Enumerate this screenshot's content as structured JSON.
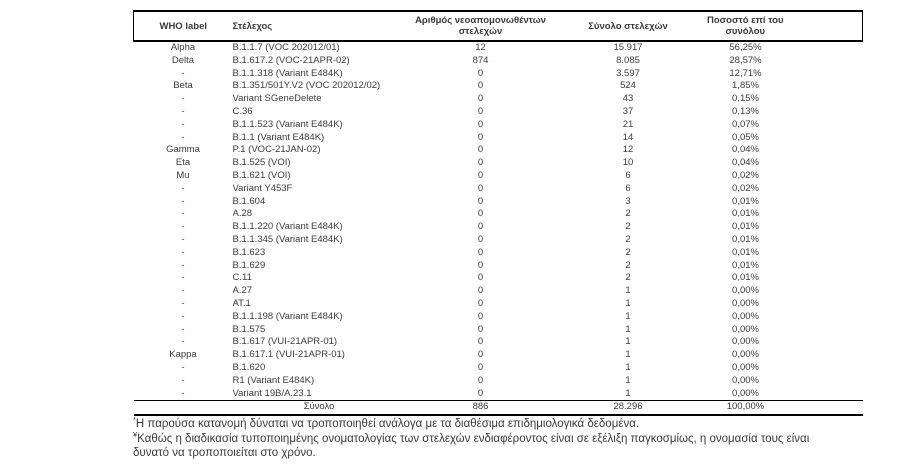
{
  "table": {
    "headers": [
      "WHO label",
      "Στέλεχος",
      "Αριθμός νεοαπομονωθέντων στελεχών",
      "Σύνολο στελεχών",
      "Ποσοστό επί του συνόλου"
    ],
    "rows": [
      [
        "Alpha",
        "B.1.1.7 (VOC 202012/01)",
        "12",
        "15.917",
        "56,25%"
      ],
      [
        "Delta",
        "B.1.617.2 (VOC-21APR-02)",
        "874",
        "8.085",
        "28,57%"
      ],
      [
        "-",
        "B.1.1.318 (Variant E484K)",
        "0",
        "3.597",
        "12,71%"
      ],
      [
        "Beta",
        "B.1.351/501Y.V2 (VOC 202012/02)",
        "0",
        "524",
        "1,85%"
      ],
      [
        "-",
        "Variant SGeneDelete",
        "0",
        "43",
        "0,15%"
      ],
      [
        "-",
        "C.36",
        "0",
        "37",
        "0,13%"
      ],
      [
        "-",
        "B.1.1.523 (Variant E484K)",
        "0",
        "21",
        "0,07%"
      ],
      [
        "-",
        "B.1.1 (Variant E484K)",
        "0",
        "14",
        "0,05%"
      ],
      [
        "Gamma",
        "P.1 (VOC-21JAN-02)",
        "0",
        "12",
        "0,04%"
      ],
      [
        "Eta",
        "B.1.525 (VOI)",
        "0",
        "10",
        "0,04%"
      ],
      [
        "Mu",
        "B.1.621 (VOI)",
        "0",
        "6",
        "0,02%"
      ],
      [
        "-",
        "Variant Y453F",
        "0",
        "6",
        "0,02%"
      ],
      [
        "-",
        "B.1.604",
        "0",
        "3",
        "0,01%"
      ],
      [
        "-",
        "A.28",
        "0",
        "2",
        "0,01%"
      ],
      [
        "-",
        "B.1.1.220 (Variant E484K)",
        "0",
        "2",
        "0,01%"
      ],
      [
        "-",
        "B.1.1.345 (Variant E484K)",
        "0",
        "2",
        "0,01%"
      ],
      [
        "-",
        "B.1.623",
        "0",
        "2",
        "0,01%"
      ],
      [
        "-",
        "B.1.629",
        "0",
        "2",
        "0,01%"
      ],
      [
        "-",
        "C.11",
        "0",
        "2",
        "0,01%"
      ],
      [
        "-",
        "A.27",
        "0",
        "1",
        "0,00%"
      ],
      [
        "-",
        "AT.1",
        "0",
        "1",
        "0,00%"
      ],
      [
        "-",
        "B.1.1.198 (Variant E484K)",
        "0",
        "1",
        "0,00%"
      ],
      [
        "-",
        "B.1.575",
        "0",
        "1",
        "0,00%"
      ],
      [
        "-",
        "B.1.617 (VUI-21APR-01)",
        "0",
        "1",
        "0,00%"
      ],
      [
        "Kappa",
        "B.1.617.1 (VUI-21APR-01)",
        "0",
        "1",
        "0,00%"
      ],
      [
        "-",
        "B.1.620",
        "0",
        "1",
        "0,00%"
      ],
      [
        "-",
        "R1 (Variant E484K)",
        "0",
        "1",
        "0,00%"
      ],
      [
        "-",
        "Variant 19B/A.23.1",
        "0",
        "1",
        "0,00%"
      ]
    ],
    "total_row": {
      "label": "Σύνολο",
      "new_isolates": "886",
      "total": "28.296",
      "percent": "100,00%"
    }
  },
  "footnotes": [
    {
      "marker": "*",
      "text": "Η παρούσα κατανομή δύναται να τροποποιηθεί ανάλογα με τα διαθέσιμα επιδημιολογικά δεδομένα."
    },
    {
      "marker": "¥",
      "text": "Καθώς η διαδικασία τυποποιημένης ονοματολογίας των στελεχών ενδιαφέροντος είναι σε εξέλιξη παγκοσμίως, η ονομασία τους είναι\nδυνατό να τροποποιείται στο χρόνο."
    }
  ],
  "colors": {
    "background": "#ffffff",
    "text": "#3a3a3a",
    "border": "#000000"
  }
}
